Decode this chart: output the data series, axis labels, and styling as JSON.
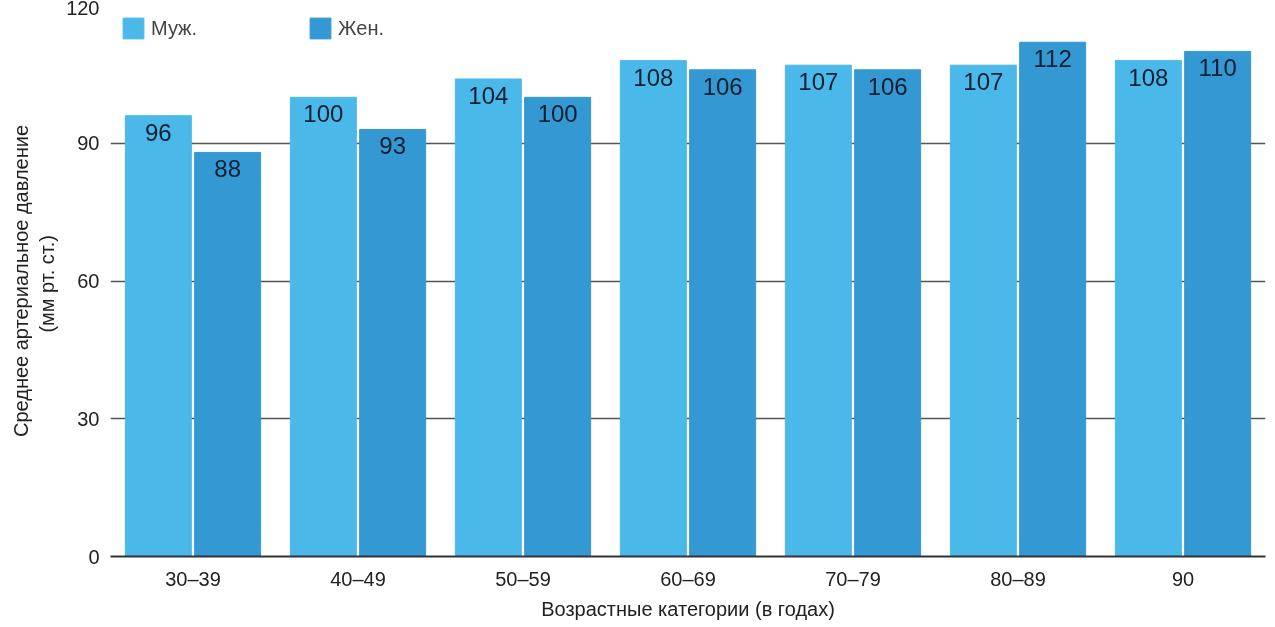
{
  "chart_data": {
    "type": "bar",
    "xlabel": "Возрастные категории (в годах)",
    "ylabel": "Среднее артериальное давление\n(мм  рт. ст.)",
    "categories": [
      "30–39",
      "40–49",
      "50–59",
      "60–69",
      "70–79",
      "80–89",
      "90"
    ],
    "series": [
      {
        "name": "Муж.",
        "color": "#4ab9e9",
        "values": [
          96,
          100,
          104,
          108,
          107,
          107,
          108
        ]
      },
      {
        "name": "Жен.",
        "color": "#3498d3",
        "values": [
          88,
          93,
          100,
          106,
          106,
          112,
          110
        ]
      }
    ],
    "ylim": [
      0,
      120
    ],
    "yticks": [
      0,
      30,
      60,
      90,
      120
    ],
    "grid": "y",
    "legend": "top left",
    "data_labels": true
  }
}
